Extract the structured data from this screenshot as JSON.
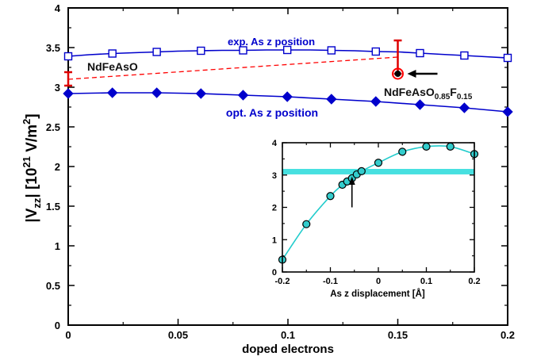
{
  "chart_data": [
    {
      "type": "line",
      "title": "",
      "xlabel": "doped electrons",
      "ylabel_parts": {
        "pre": "|V",
        "sub": "zz",
        "mid": "| [10",
        "sup": "21",
        "unit": " V/m",
        "unit_sup": "2",
        "close": "]"
      },
      "xlim": [
        0,
        0.2
      ],
      "ylim": [
        0,
        4
      ],
      "xticks": [
        0,
        0.05,
        0.1,
        0.15,
        0.2
      ],
      "xtick_labels": [
        "0",
        "0.05",
        "0.1",
        "0.15",
        "0.2"
      ],
      "yticks": [
        0,
        0.5,
        1,
        1.5,
        2,
        2.5,
        3,
        3.5,
        4
      ],
      "ytick_labels": [
        "0",
        "0.5",
        "1",
        "1.5",
        "2",
        "2.5",
        "3",
        "3.5",
        "4"
      ],
      "series": [
        {
          "name": "exp. As z position",
          "marker": "open-square",
          "color": "#0000cc",
          "x": [
            0,
            0.0095,
            0.0201,
            0.0297,
            0.0403,
            0.0498,
            0.0604,
            0.07,
            0.0796,
            0.0901,
            0.0997,
            0.1103,
            0.1198,
            0.1304,
            0.14,
            0.1506,
            0.1601,
            0.1697,
            0.1803,
            0.1899,
            0.2
          ],
          "y": [
            3.39,
            3.41,
            3.425,
            3.435,
            3.445,
            3.455,
            3.46,
            3.465,
            3.465,
            3.47,
            3.47,
            3.47,
            3.465,
            3.46,
            3.45,
            3.445,
            3.43,
            3.415,
            3.4,
            3.385,
            3.37
          ],
          "marker_x": [
            0,
            0.0201,
            0.0403,
            0.0604,
            0.0796,
            0.0997,
            0.1198,
            0.14,
            0.1601,
            0.1803,
            0.2
          ],
          "marker_y": [
            3.39,
            3.425,
            3.445,
            3.46,
            3.465,
            3.47,
            3.465,
            3.45,
            3.43,
            3.4,
            3.37
          ]
        },
        {
          "name": "opt. As z position",
          "marker": "filled-diamond",
          "color": "#0000cc",
          "x": [
            0,
            0.0201,
            0.0403,
            0.0604,
            0.0796,
            0.0997,
            0.1198,
            0.14,
            0.1601,
            0.1803,
            0.2
          ],
          "y": [
            2.92,
            2.93,
            2.93,
            2.92,
            2.9,
            2.88,
            2.85,
            2.82,
            2.78,
            2.74,
            2.69
          ]
        }
      ],
      "dashed_connector": {
        "color": "#ff0000",
        "from": [
          0,
          3.1
        ],
        "to": [
          0.15,
          3.38
        ]
      },
      "error_bars": [
        {
          "x": 0,
          "ylow": 3.02,
          "yhigh": 3.19,
          "color": "#dd0000"
        },
        {
          "x": 0.15,
          "ylow": 3.17,
          "yhigh": 3.59,
          "color": "#dd0000"
        }
      ],
      "highlight_point": {
        "x": 0.15,
        "y": 3.17,
        "color": "#ff0000",
        "marker": "open-circle"
      },
      "annotations": [
        {
          "text": "exp. As z position",
          "color": "#0000cc"
        },
        {
          "text": "opt. As z position",
          "color": "#0000cc"
        },
        {
          "text": "NdFeAsO",
          "color": "#111111"
        },
        {
          "text_parts": {
            "a": "NdFeAsO",
            "sub1": "0.85",
            "b": "F",
            "sub2": "0.15"
          },
          "color": "#111111"
        }
      ],
      "arrow_note": {
        "direction": "left",
        "points_to": [
          0.15,
          3.17
        ],
        "color": "#000000"
      }
    },
    {
      "type": "line",
      "title": "",
      "xlabel": "As z displacement [Å]",
      "ylabel": "",
      "xlim": [
        -0.2,
        0.2
      ],
      "ylim": [
        0,
        4
      ],
      "xticks": [
        -0.2,
        -0.1,
        0,
        0.1,
        0.2
      ],
      "xtick_labels": [
        "-0.2",
        "-0.1",
        "0",
        "0.1",
        "0.2"
      ],
      "yticks": [
        0,
        1,
        2,
        3,
        4
      ],
      "ytick_labels": [
        "0",
        "1",
        "2",
        "3",
        "4"
      ],
      "band": {
        "ylow": 3.02,
        "yhigh": 3.19,
        "color": "#33dddd"
      },
      "fit_color": "#22cccc",
      "marker_fill": "#33cccc",
      "points": {
        "x": [
          -0.2,
          -0.15,
          -0.1,
          -0.075,
          -0.065,
          -0.055,
          -0.045,
          -0.035,
          0,
          0.05,
          0.1,
          0.15,
          0.2
        ],
        "y": [
          0.38,
          1.48,
          2.35,
          2.7,
          2.8,
          2.9,
          3.02,
          3.12,
          3.38,
          3.72,
          3.88,
          3.88,
          3.65
        ]
      },
      "arrow_note": {
        "direction": "up",
        "x": -0.055,
        "color": "#000000"
      }
    }
  ]
}
